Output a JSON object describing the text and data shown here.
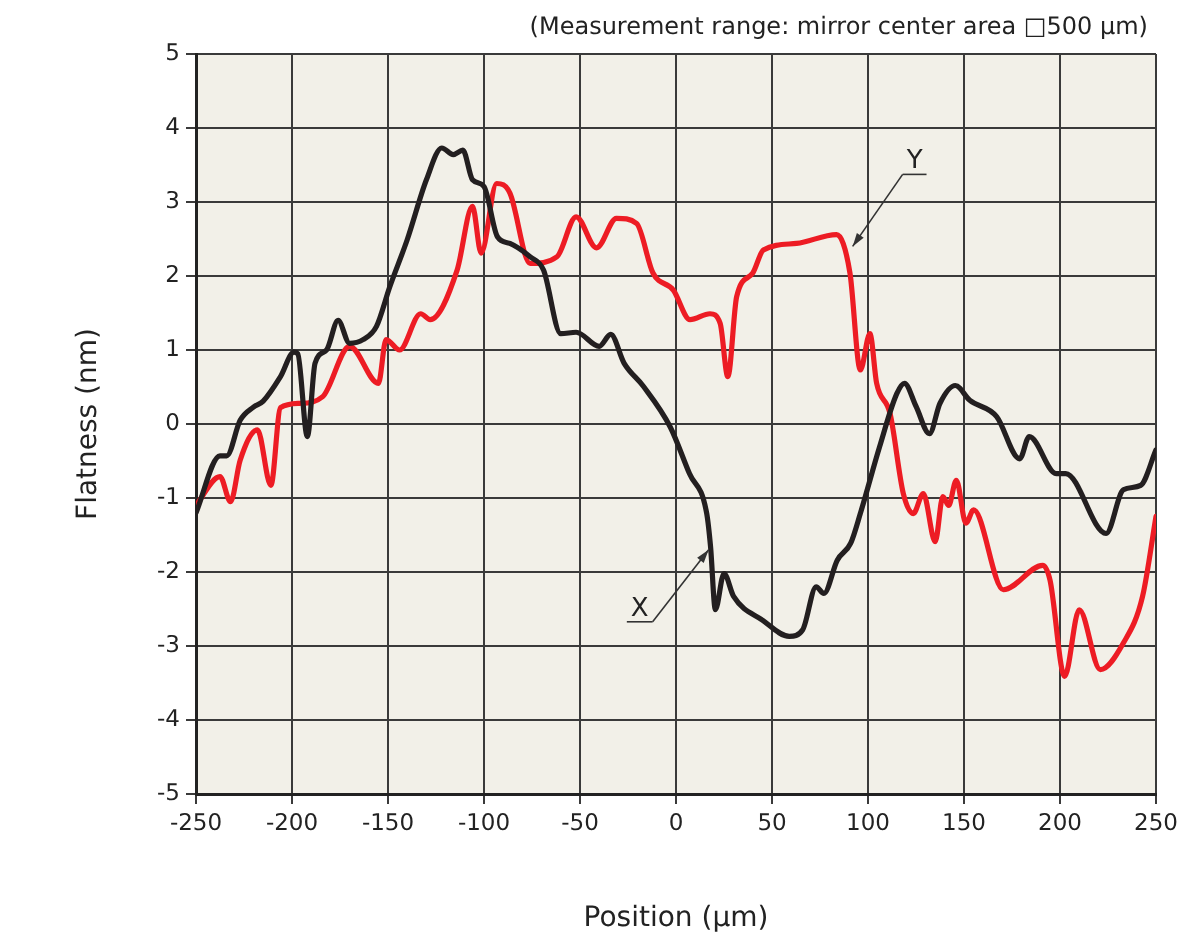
{
  "chart_data": {
    "type": "line",
    "title": "(Measurement range: mirror center area □500 μm)",
    "xlabel": "Position (μm)",
    "ylabel": "Flatness (nm)",
    "xlim": [
      -250,
      250
    ],
    "xticks": [
      -250,
      -200,
      -150,
      -100,
      -50,
      0,
      50,
      100,
      150,
      200,
      250
    ],
    "ylim": [
      -5,
      5
    ],
    "yticks": [
      -5,
      -4,
      -3,
      -2,
      -1,
      0,
      1,
      2,
      3,
      4,
      5
    ],
    "grid": true,
    "legend": false,
    "marker": "none",
    "line_style": "solid",
    "annotations": [
      {
        "text": "X",
        "x": 17,
        "y": -1.7
      },
      {
        "text": "Y",
        "x": 92,
        "y": 2.4
      }
    ],
    "series": [
      {
        "color": "#231f20",
        "x": [
          -250,
          -237.5,
          -234,
          -227,
          -220,
          -215,
          -206,
          -199,
          -197,
          -192,
          -188,
          -182,
          -176,
          -170,
          -163,
          -156,
          -149,
          -140,
          -130,
          -122,
          -116,
          -111,
          -106,
          -100,
          -93,
          -86.5,
          -76,
          -69,
          -60,
          -52,
          -40,
          -34,
          -27,
          -17,
          -3,
          7,
          16,
          18,
          20.5,
          25,
          30,
          45,
          59,
          66,
          73,
          77,
          84,
          91,
          96,
          106,
          115,
          119,
          125,
          132,
          137.5,
          145.5,
          153,
          167,
          179,
          184,
          198,
          203,
          224,
          233,
          242,
          250
        ],
        "values": [
          -1.2,
          -0.43,
          -0.43,
          0.05,
          0.23,
          0.31,
          0.64,
          0.97,
          0.95,
          -0.17,
          0.82,
          1.0,
          1.4,
          1.09,
          1.14,
          1.32,
          1.86,
          2.49,
          3.3,
          3.73,
          3.64,
          3.7,
          3.3,
          3.21,
          2.53,
          2.44,
          2.26,
          2.08,
          1.22,
          1.24,
          1.05,
          1.21,
          0.82,
          0.51,
          -0.04,
          -0.67,
          -1.21,
          -1.66,
          -2.51,
          -2.02,
          -2.33,
          -2.65,
          -2.87,
          -2.78,
          -2.2,
          -2.29,
          -1.84,
          -1.61,
          -1.21,
          -0.31,
          0.41,
          0.55,
          0.24,
          -0.13,
          0.28,
          0.52,
          0.32,
          0.1,
          -0.47,
          -0.17,
          -0.67,
          -0.67,
          -1.48,
          -0.89,
          -0.83,
          -0.35
        ]
      },
      {
        "color": "#ed1c24",
        "x": [
          -250,
          -237.5,
          -232,
          -227,
          -218,
          -211,
          -206,
          -196,
          -184,
          -170,
          -155,
          -151,
          -144,
          -133,
          -128,
          -114,
          -106,
          -101.5,
          -93.4,
          -86.5,
          -76,
          -62,
          -52,
          -41.4,
          -31,
          -20.5,
          -12,
          -1.4,
          7.3,
          17.7,
          23,
          27,
          31.6,
          40,
          45.5,
          62.8,
          83.6,
          90.6,
          96,
          101,
          104.5,
          111.5,
          118.4,
          123.6,
          128.8,
          135,
          139,
          142,
          146,
          151,
          155,
          170.5,
          191,
          194.8,
          202.4,
          210,
          221,
          233,
          243,
          250
        ],
        "values": [
          -1.1,
          -0.71,
          -1.05,
          -0.49,
          -0.08,
          -0.83,
          0.22,
          0.28,
          0.37,
          1.05,
          0.55,
          1.14,
          1.0,
          1.49,
          1.41,
          2.08,
          2.94,
          2.31,
          3.25,
          3.12,
          2.17,
          2.26,
          2.8,
          2.38,
          2.78,
          2.71,
          2.04,
          1.81,
          1.41,
          1.49,
          1.36,
          0.64,
          1.72,
          2.04,
          2.35,
          2.44,
          2.56,
          2.04,
          0.73,
          1.22,
          0.55,
          0.14,
          -0.94,
          -1.21,
          -0.94,
          -1.59,
          -0.98,
          -1.1,
          -0.76,
          -1.34,
          -1.16,
          -2.24,
          -1.91,
          -2.11,
          -3.41,
          -2.51,
          -3.32,
          -2.96,
          -2.33,
          -1.25
        ]
      }
    ]
  }
}
